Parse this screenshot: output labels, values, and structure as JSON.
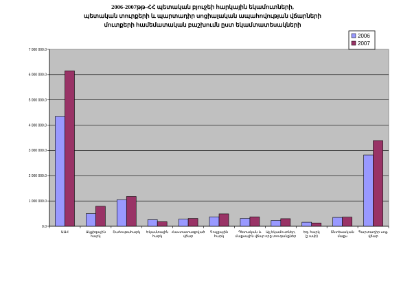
{
  "chart_data": {
    "type": "bar",
    "title_lines": [
      "2006-2007թթ-ՀՀ պետական բյուջեի հարկային եկամուտների,",
      "պետական տուրքերի և պարտադիր սոցիալական ապահովության վճարների",
      "մուտքերի համեմատական բաշխումն ըստ եկամտատեսակների"
    ],
    "categories": [
      "ԱԱՀ",
      "Ակցիզային հարկ",
      "Շահութահարկ",
      "Եկամտային հարկ",
      "Հաստատագրված վճար",
      "Գույքային հարկ",
      "Պետական և մաքսային վճար",
      "Այլ եկամուտներ, որը տուգանքներ",
      "Եզ. հարկ (շ ամբ)",
      "Տնտեսական մաքս",
      "Պարտադիր սոց. վճար"
    ],
    "series": [
      {
        "name": "2006",
        "color": "#9999ff",
        "values": [
          4350000,
          500000,
          1050000,
          260000,
          280000,
          370000,
          310000,
          230000,
          160000,
          350000,
          2820000
        ]
      },
      {
        "name": "2007",
        "color": "#993366",
        "values": [
          6150000,
          790000,
          1180000,
          180000,
          310000,
          490000,
          370000,
          300000,
          130000,
          360000,
          3390000
        ]
      }
    ],
    "ylim": [
      0,
      7000000
    ],
    "ytick_step": 1000000,
    "ytick_labels": [
      "0.0",
      "1 000 000.0",
      "2 000 000.0",
      "3 000 000.0",
      "4 000 000.0",
      "5 000 000.0",
      "6 000 000.0",
      "7 000 000.0"
    ],
    "grid": true,
    "legend_position": "top-right",
    "plot_background": "#c0c0c0"
  }
}
